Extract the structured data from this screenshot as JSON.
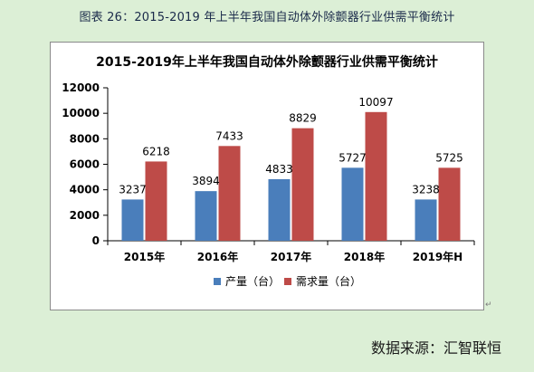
{
  "caption": "图表 26：2015-2019 年上半年我国自动体外除颤器行业供需平衡统计",
  "source": "数据来源：汇智联恒",
  "chart_data": {
    "type": "bar",
    "title": "2015-2019年上半年我国自动体外除颤器行业供需平衡统计",
    "categories": [
      "2015年",
      "2016年",
      "2017年",
      "2018年",
      "2019年H"
    ],
    "series": [
      {
        "name": "产量（台）",
        "values": [
          3237,
          3894,
          4833,
          5727,
          3238
        ],
        "color": "#4a7ebb"
      },
      {
        "name": "需求量（台）",
        "values": [
          6218,
          7433,
          8829,
          10097,
          5725
        ],
        "color": "#be4b48"
      }
    ],
    "yticks": [
      0,
      2000,
      4000,
      6000,
      8000,
      10000,
      12000
    ],
    "ylim": [
      0,
      12000
    ],
    "grid": false,
    "legend_position": "bottom",
    "data_labels": true
  }
}
